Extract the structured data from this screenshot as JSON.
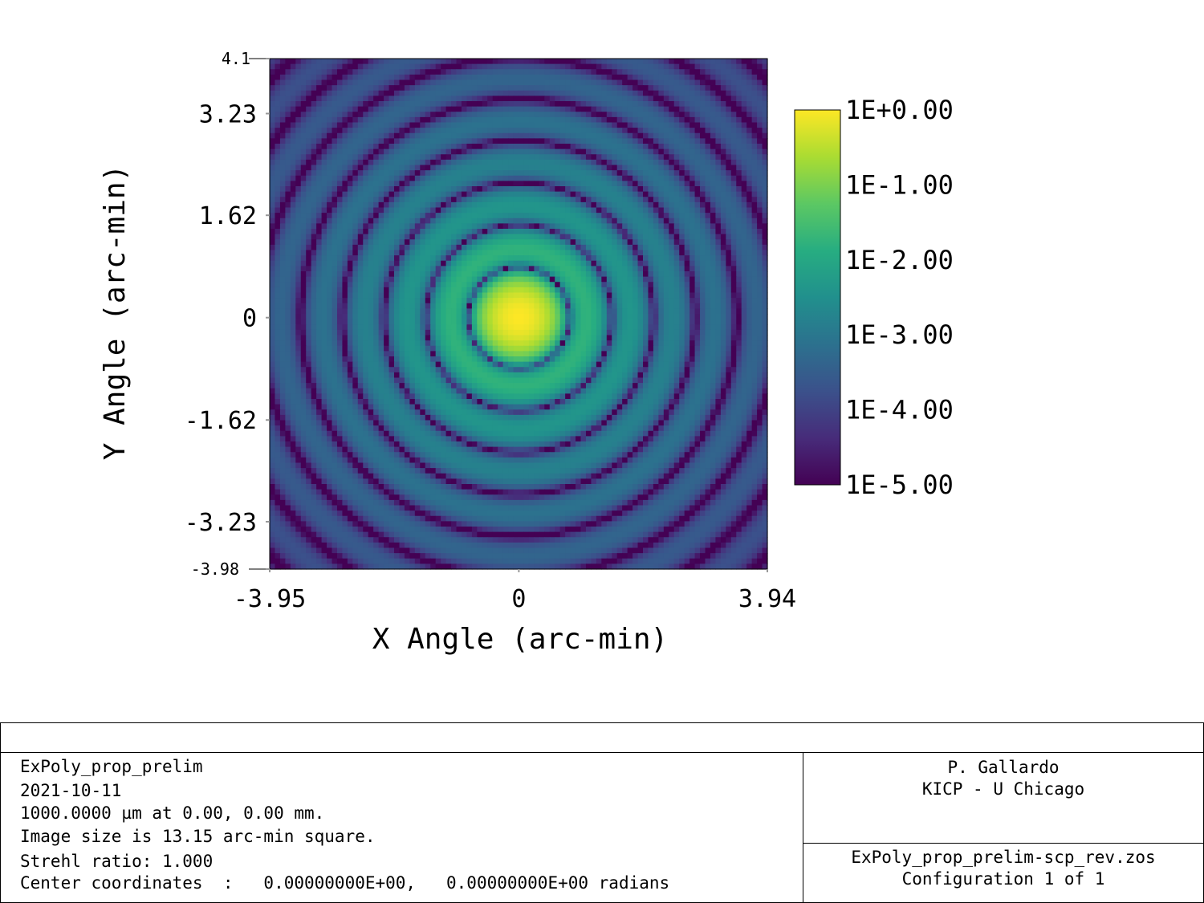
{
  "chart_data": {
    "type": "heatmap",
    "xlabel": "X Angle (arc-min)",
    "ylabel": "Y Angle (arc-min)",
    "xlim": [
      -3.95,
      3.94
    ],
    "ylim": [
      -3.98,
      4.1
    ],
    "x_ticks": [
      {
        "value": -3.95,
        "label": "-3.95"
      },
      {
        "value": 0,
        "label": "0"
      },
      {
        "value": 3.94,
        "label": "3.94"
      }
    ],
    "y_ticks": [
      {
        "value": 4.1,
        "label": "4.1"
      },
      {
        "value": 3.23,
        "label": "3.23"
      },
      {
        "value": 1.62,
        "label": "1.62"
      },
      {
        "value": 0,
        "label": "0"
      },
      {
        "value": -1.62,
        "label": "-1.62"
      },
      {
        "value": -3.23,
        "label": "-3.23"
      },
      {
        "value": -3.98,
        "label": "-3.98"
      }
    ],
    "colorbar": {
      "scale": "log",
      "range": [
        1e-05,
        1
      ],
      "ticks": [
        "1E+0.00",
        "1E-1.00",
        "1E-2.00",
        "1E-3.00",
        "1E-4.00",
        "1E-5.00"
      ]
    },
    "colormap": [
      "#440154",
      "#472c7a",
      "#3b518b",
      "#2c718e",
      "#21908d",
      "#27ad81",
      "#5cc863",
      "#aadc32",
      "#fde725"
    ],
    "pattern": "airy",
    "center": [
      0,
      0
    ],
    "dark_ring_spacing_arcmin": 0.66
  },
  "labels": {
    "title": "",
    "lines": [
      "ExPoly_prop_prelim",
      "2021-10-11",
      "1000.0000 µm at 0.00, 0.00 mm.",
      "Image size is 13.15 arc-min square.",
      "Strehl ratio: 1.000",
      "Center coordinates  :   0.00000000E+00,   0.00000000E+00 radians"
    ],
    "author": "P. Gallardo",
    "institution": "KICP - U Chicago",
    "filename": "ExPoly_prop_prelim-scp_rev.zos",
    "configuration": "Configuration 1 of 1"
  }
}
